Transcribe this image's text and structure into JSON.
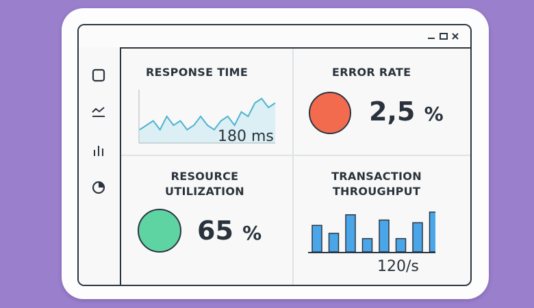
{
  "colors": {
    "background": "#9a7fcc",
    "error_indicator": "#f36b4f",
    "resource_indicator": "#5fd4a3",
    "sparkline": "#4fb3cf",
    "bars": "#4aa6e8"
  },
  "window": {
    "controls": [
      "minimize-icon",
      "maximize-icon",
      "close-icon"
    ]
  },
  "sidebar": {
    "items": [
      {
        "icon": "square-icon"
      },
      {
        "icon": "line-chart-icon"
      },
      {
        "icon": "bar-chart-icon"
      },
      {
        "icon": "pie-chart-icon"
      }
    ]
  },
  "panels": {
    "response_time": {
      "title": "RESPONSE TIME",
      "value": "180 ms"
    },
    "error_rate": {
      "title": "ERROR RATE",
      "value": "2,5",
      "unit": "%"
    },
    "resource_utilization": {
      "title_line1": "RESOURCE",
      "title_line2": "UTILIZATION",
      "value": "65",
      "unit": "%"
    },
    "transaction_throughput": {
      "title_line1": "TRANSACTION",
      "title_line2": "THROUGHPUT",
      "value": "120/s"
    }
  },
  "chart_data": [
    {
      "type": "line",
      "values": [
        3,
        4,
        5,
        3,
        6,
        4,
        5,
        3,
        4,
        6,
        4,
        3,
        5,
        6,
        4,
        7,
        6,
        9,
        10,
        8,
        9
      ],
      "ylim": [
        0,
        12
      ]
    },
    {
      "type": "bar",
      "values": [
        5,
        3.5,
        7,
        2.5,
        6,
        2.5,
        5.5,
        7.5
      ],
      "ylim": [
        0,
        8
      ]
    }
  ]
}
